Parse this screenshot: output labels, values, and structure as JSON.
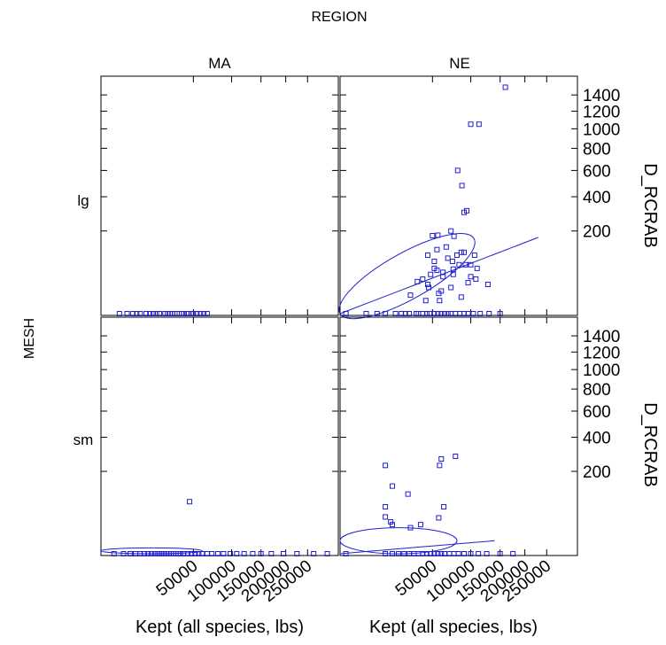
{
  "chart_data": {
    "type": "scatter",
    "title": "REGION",
    "column_var": "REGION",
    "row_var": "MESH",
    "columns": [
      "MA",
      "NE"
    ],
    "rows": [
      "lg",
      "sm"
    ],
    "xlabel": "Kept (all species, lbs)",
    "ylabel": "D_RCRAB",
    "x_scale": "sqrt",
    "y_scale": "sqrt",
    "xlim": [
      0,
      330000
    ],
    "ylim": [
      0,
      1650
    ],
    "x_ticks": [
      50000,
      100000,
      150000,
      200000,
      250000
    ],
    "y_ticks": [
      200,
      400,
      600,
      800,
      1000,
      1200,
      1400
    ],
    "marker": "open-square",
    "color": "#1f1fd0",
    "panels": [
      {
        "row": "lg",
        "column": "MA",
        "points": [
          [
            2000,
            0
          ],
          [
            4000,
            0
          ],
          [
            6000,
            0
          ],
          [
            9000,
            0
          ],
          [
            12000,
            0
          ],
          [
            16000,
            0
          ],
          [
            20000,
            0
          ],
          [
            24000,
            0
          ],
          [
            28000,
            0
          ],
          [
            32000,
            0
          ],
          [
            36000,
            0
          ],
          [
            40000,
            0
          ],
          [
            45000,
            0
          ],
          [
            50000,
            0
          ],
          [
            58000,
            0
          ],
          [
            7500,
            0
          ],
          [
            14000,
            0
          ],
          [
            18000,
            0
          ],
          [
            26000,
            0
          ],
          [
            30000,
            0
          ],
          [
            34000,
            0
          ],
          [
            38000,
            0
          ],
          [
            43000,
            0
          ],
          [
            48000,
            0
          ],
          [
            54000,
            0
          ],
          [
            62000,
            0
          ],
          [
            66000,
            0
          ]
        ],
        "fit_line": null,
        "ellipse": null
      },
      {
        "row": "lg",
        "column": "NE",
        "points": [
          [
            160000,
            1500
          ],
          [
            100000,
            1050
          ],
          [
            113000,
            1050
          ],
          [
            87000,
            480
          ],
          [
            81000,
            600
          ],
          [
            90000,
            300
          ],
          [
            94000,
            310
          ],
          [
            72000,
            200
          ],
          [
            76000,
            175
          ],
          [
            56000,
            180
          ],
          [
            50000,
            178
          ],
          [
            55000,
            120
          ],
          [
            66000,
            130
          ],
          [
            45000,
            100
          ],
          [
            52000,
            80
          ],
          [
            68000,
            90
          ],
          [
            74000,
            80
          ],
          [
            83000,
            70
          ],
          [
            92000,
            70
          ],
          [
            100000,
            70
          ],
          [
            86000,
            110
          ],
          [
            110000,
            60
          ],
          [
            128000,
            25
          ],
          [
            106000,
            100
          ],
          [
            35000,
            30
          ],
          [
            29000,
            10
          ],
          [
            46000,
            20
          ],
          [
            52000,
            60
          ],
          [
            62000,
            40
          ],
          [
            62000,
            50
          ],
          [
            75000,
            58
          ],
          [
            80000,
            100
          ],
          [
            90000,
            110
          ],
          [
            100000,
            40
          ],
          [
            40000,
            35
          ],
          [
            45000,
            25
          ],
          [
            48000,
            45
          ],
          [
            55000,
            55
          ],
          [
            57000,
            12
          ],
          [
            60000,
            15
          ],
          [
            43000,
            5
          ],
          [
            58000,
            5
          ],
          [
            72000,
            20
          ],
          [
            75000,
            45
          ],
          [
            86000,
            8
          ],
          [
            96000,
            28
          ],
          [
            108000,
            35
          ],
          [
            28000,
            0
          ],
          [
            34000,
            0
          ],
          [
            36000,
            0
          ],
          [
            40000,
            0
          ],
          [
            44000,
            0
          ],
          [
            47000,
            0
          ],
          [
            52000,
            0
          ],
          [
            56000,
            0
          ],
          [
            60000,
            0
          ],
          [
            64000,
            0
          ],
          [
            68000,
            0
          ],
          [
            72000,
            0
          ],
          [
            78000,
            0
          ],
          [
            84000,
            0
          ],
          [
            90000,
            0
          ],
          [
            96000,
            0
          ],
          [
            104000,
            0
          ],
          [
            115000,
            0
          ],
          [
            130000,
            0
          ],
          [
            150000,
            0
          ],
          [
            18000,
            0
          ],
          [
            22000,
            0
          ],
          [
            25000,
            0
          ],
          [
            12000,
            0
          ],
          [
            8000,
            0
          ],
          [
            4000,
            0
          ],
          [
            200,
            0
          ]
        ],
        "fit_line": {
          "x_start": 0,
          "y_start": 0,
          "x_end": 230000,
          "y_end": 170
        },
        "ellipse": {
          "cx_start": 0,
          "cx_end": 105000,
          "y_low": 0,
          "y_high": 165,
          "rotated": true
        }
      },
      {
        "row": "sm",
        "column": "MA",
        "points": [
          [
            1000,
            0
          ],
          [
            3000,
            0
          ],
          [
            5000,
            0
          ],
          [
            7000,
            0
          ],
          [
            9000,
            0
          ],
          [
            11000,
            0
          ],
          [
            13000,
            0
          ],
          [
            15000,
            0
          ],
          [
            17000,
            0
          ],
          [
            19000,
            0
          ],
          [
            21000,
            0
          ],
          [
            23000,
            0
          ],
          [
            25000,
            0
          ],
          [
            27000,
            0
          ],
          [
            29000,
            0
          ],
          [
            31000,
            0
          ],
          [
            33000,
            0
          ],
          [
            35000,
            0
          ],
          [
            37000,
            0
          ],
          [
            40000,
            0
          ],
          [
            44000,
            0
          ],
          [
            48000,
            0
          ],
          [
            52000,
            0
          ],
          [
            56000,
            0
          ],
          [
            60000,
            0
          ],
          [
            66000,
            0
          ],
          [
            72000,
            0
          ],
          [
            80000,
            0
          ],
          [
            88000,
            0
          ],
          [
            98000,
            0
          ],
          [
            108000,
            0
          ],
          [
            120000,
            0
          ],
          [
            135000,
            0
          ],
          [
            150000,
            0
          ],
          [
            170000,
            0
          ],
          [
            195000,
            0
          ],
          [
            225000,
            0
          ],
          [
            265000,
            0
          ],
          [
            300000,
            0
          ],
          [
            46000,
            80
          ]
        ],
        "fit_line": null,
        "ellipse": {
          "cx_start": 0,
          "cx_end": 60000,
          "y_low": 0,
          "y_high": 1,
          "rotated": false
        }
      },
      {
        "row": "sm",
        "column": "NE",
        "points": [
          [
            200,
            0
          ],
          [
            12000,
            0
          ],
          [
            16000,
            0
          ],
          [
            20000,
            0
          ],
          [
            24000,
            0
          ],
          [
            28000,
            0
          ],
          [
            32000,
            0
          ],
          [
            36000,
            0
          ],
          [
            40000,
            0
          ],
          [
            44000,
            0
          ],
          [
            48000,
            0
          ],
          [
            52000,
            0
          ],
          [
            56000,
            0
          ],
          [
            60000,
            0
          ],
          [
            64000,
            0
          ],
          [
            70000,
            0
          ],
          [
            76000,
            0
          ],
          [
            82000,
            0
          ],
          [
            90000,
            0
          ],
          [
            100000,
            0
          ],
          [
            112000,
            0
          ],
          [
            126000,
            0
          ],
          [
            150000,
            0
          ],
          [
            175000,
            0
          ],
          [
            12000,
            230
          ],
          [
            58000,
            230
          ],
          [
            60000,
            265
          ],
          [
            78000,
            280
          ],
          [
            16000,
            135
          ],
          [
            27000,
            105
          ],
          [
            12000,
            65
          ],
          [
            63000,
            65
          ],
          [
            12000,
            40
          ],
          [
            15000,
            30
          ],
          [
            16000,
            25
          ],
          [
            38000,
            25
          ],
          [
            29000,
            20
          ],
          [
            57000,
            38
          ]
        ],
        "fit_line": {
          "x_start": 0,
          "y_start": 0,
          "x_end": 140000,
          "y_end": 5
        },
        "ellipse": {
          "cx_start": 0,
          "cx_end": 80000,
          "y_low": 0,
          "y_high": 20,
          "rotated": false
        }
      }
    ]
  }
}
